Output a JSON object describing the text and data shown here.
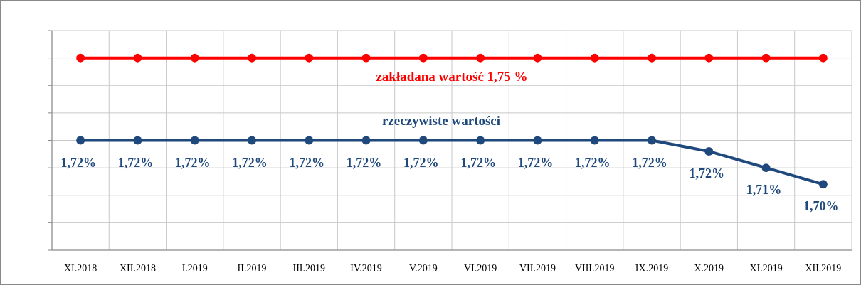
{
  "chart_data": {
    "type": "line",
    "categories": [
      "XI.2018",
      "XII.2018",
      "I.2019",
      "II.2019",
      "III.2019",
      "IV.2019",
      "V.2019",
      "VI.2019",
      "VII.2019",
      "VIII.2019",
      "IX.2019",
      "X.2019",
      "XI.2019",
      "XII.2019"
    ],
    "series": [
      {
        "name": "zakładana wartość 1,75 %",
        "color": "#ff0000",
        "values": [
          1.75,
          1.75,
          1.75,
          1.75,
          1.75,
          1.75,
          1.75,
          1.75,
          1.75,
          1.75,
          1.75,
          1.75,
          1.75,
          1.75
        ]
      },
      {
        "name": "rzeczywiste wartości",
        "color": "#1f497d",
        "values": [
          1.72,
          1.72,
          1.72,
          1.72,
          1.72,
          1.72,
          1.72,
          1.72,
          1.72,
          1.72,
          1.72,
          1.716,
          1.71,
          1.704
        ],
        "value_labels": [
          "1,72%",
          "1,72%",
          "1,72%",
          "1,72%",
          "1,72%",
          "1,72%",
          "1,72%",
          "1,72%",
          "1,72%",
          "1,72%",
          "1,72%",
          "1,72%",
          "1,71%",
          "1,70%"
        ]
      }
    ],
    "ylim": [
      1.68,
      1.76
    ],
    "yticks": [
      {
        "value": 1.68,
        "label": null
      },
      {
        "value": 1.69,
        "label": null
      },
      {
        "value": 1.7,
        "label": null
      },
      {
        "value": 1.71,
        "label": null
      },
      {
        "value": 1.72,
        "label": null
      },
      {
        "value": 1.73,
        "label": null
      },
      {
        "value": 1.74,
        "label": null
      },
      {
        "value": 1.75,
        "label": null
      },
      {
        "value": 1.76,
        "label": null
      }
    ],
    "tick_labels": "x",
    "grid": true,
    "marker": "circle",
    "line_style": "solid"
  }
}
